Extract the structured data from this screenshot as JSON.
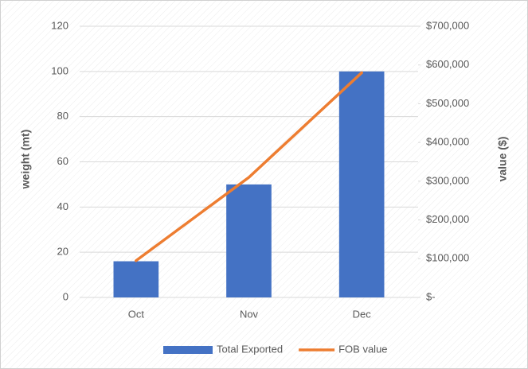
{
  "chart_data": {
    "type": "bar",
    "categories": [
      "Oct",
      "Nov",
      "Dec"
    ],
    "series": [
      {
        "name": "Total Exported",
        "type": "bar",
        "color": "#4472c4",
        "axis": "y",
        "values": [
          16,
          50,
          100
        ]
      },
      {
        "name": "FOB value",
        "type": "line",
        "color": "#ed7d31",
        "axis": "y2",
        "values": [
          95000,
          310000,
          580000
        ]
      }
    ],
    "ylabel": "weight (mt)",
    "y2label": "value ($)",
    "ylim": [
      0,
      120
    ],
    "yticks": [
      0,
      20,
      40,
      60,
      80,
      100,
      120
    ],
    "y2lim": [
      0,
      700000
    ],
    "y2ticks": [
      {
        "value": 0,
        "label": "$-"
      },
      {
        "value": 100000,
        "label": "$100,000"
      },
      {
        "value": 200000,
        "label": "$200,000"
      },
      {
        "value": 300000,
        "label": "$300,000"
      },
      {
        "value": 400000,
        "label": "$400,000"
      },
      {
        "value": 500000,
        "label": "$500,000"
      },
      {
        "value": 600000,
        "label": "$600,000"
      },
      {
        "value": 700000,
        "label": "$700,000"
      }
    ],
    "grid": true,
    "legend": "bottom"
  }
}
